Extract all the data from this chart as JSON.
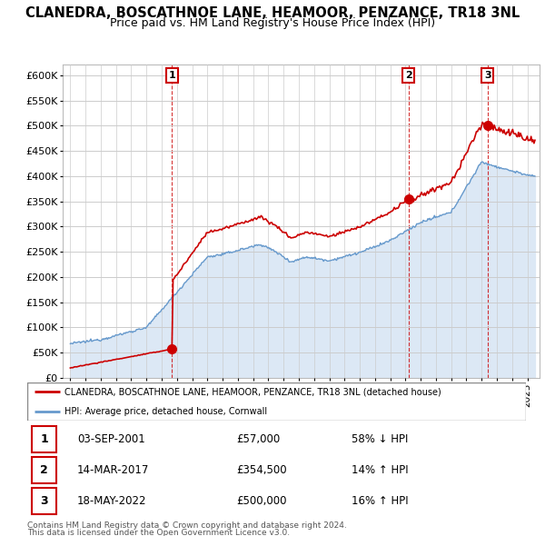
{
  "title": "CLANEDRA, BOSCATHNOE LANE, HEAMOOR, PENZANCE, TR18 3NL",
  "subtitle": "Price paid vs. HM Land Registry's House Price Index (HPI)",
  "ylim": [
    0,
    620000
  ],
  "xlim_start": 1994.5,
  "xlim_end": 2025.8,
  "sale_events": [
    {
      "label": "1",
      "date_str": "03-SEP-2001",
      "year": 2001.67,
      "price": 57000,
      "hpi_pct": "58% ↓ HPI"
    },
    {
      "label": "2",
      "date_str": "14-MAR-2017",
      "year": 2017.2,
      "price": 354500,
      "hpi_pct": "14% ↑ HPI"
    },
    {
      "label": "3",
      "date_str": "18-MAY-2022",
      "year": 2022.38,
      "price": 500000,
      "hpi_pct": "16% ↑ HPI"
    }
  ],
  "red_line_color": "#cc0000",
  "blue_line_color": "#6699cc",
  "blue_fill_color": "#dce8f5",
  "background_color": "#ffffff",
  "grid_color": "#cccccc",
  "legend_label_red": "CLANEDRA, BOSCATHNOE LANE, HEAMOOR, PENZANCE, TR18 3NL (detached house)",
  "legend_label_blue": "HPI: Average price, detached house, Cornwall",
  "footer_line1": "Contains HM Land Registry data © Crown copyright and database right 2024.",
  "footer_line2": "This data is licensed under the Open Government Licence v3.0.",
  "title_fontsize": 10.5,
  "subtitle_fontsize": 9,
  "tick_fontsize": 8
}
